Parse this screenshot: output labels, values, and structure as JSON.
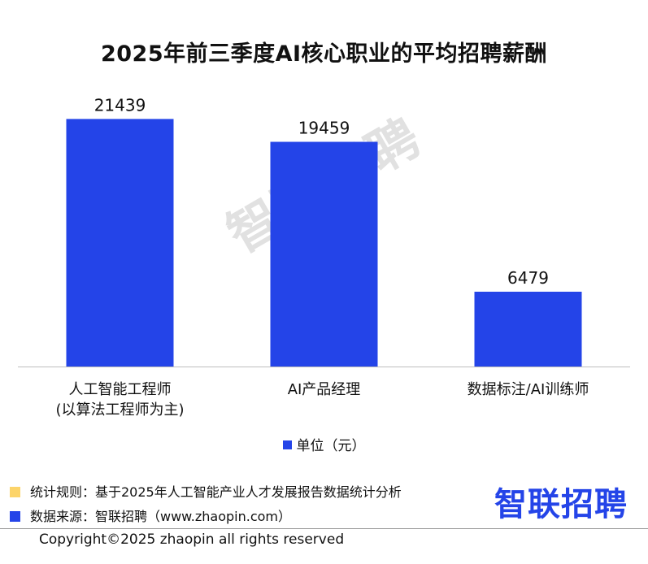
{
  "chart_data": {
    "type": "bar",
    "title": "2025年前三季度AI核心职业的平均招聘薪酬",
    "categories": [
      "人工智能工程师\n(以算法工程师为主)",
      "AI产品经理",
      "数据标注/AI训练师"
    ],
    "category_lines": [
      [
        "人工智能工程师",
        "(以算法工程师为主)"
      ],
      [
        "AI产品经理"
      ],
      [
        "数据标注/AI训练师"
      ]
    ],
    "series": [
      {
        "name": "单位（元）",
        "values": [
          21439,
          19459,
          6479
        ],
        "color": "#2444e8"
      }
    ],
    "ylim": [
      0,
      24000
    ],
    "grid": false,
    "legend_position": "bottom"
  },
  "watermark": "智联招聘",
  "legend": {
    "label": "单位（元）"
  },
  "footnotes": {
    "rule_label": "统计规则：基于2025年人工智能产业人才发展报告数据统计分析",
    "rule_color": "#fcd46a",
    "source_label": "数据来源：智联招聘（www.zhaopin.com）",
    "source_color": "#2444e8"
  },
  "brand": "智联招聘",
  "copyright": "Copyright©2025 zhaopin all rights reserved"
}
